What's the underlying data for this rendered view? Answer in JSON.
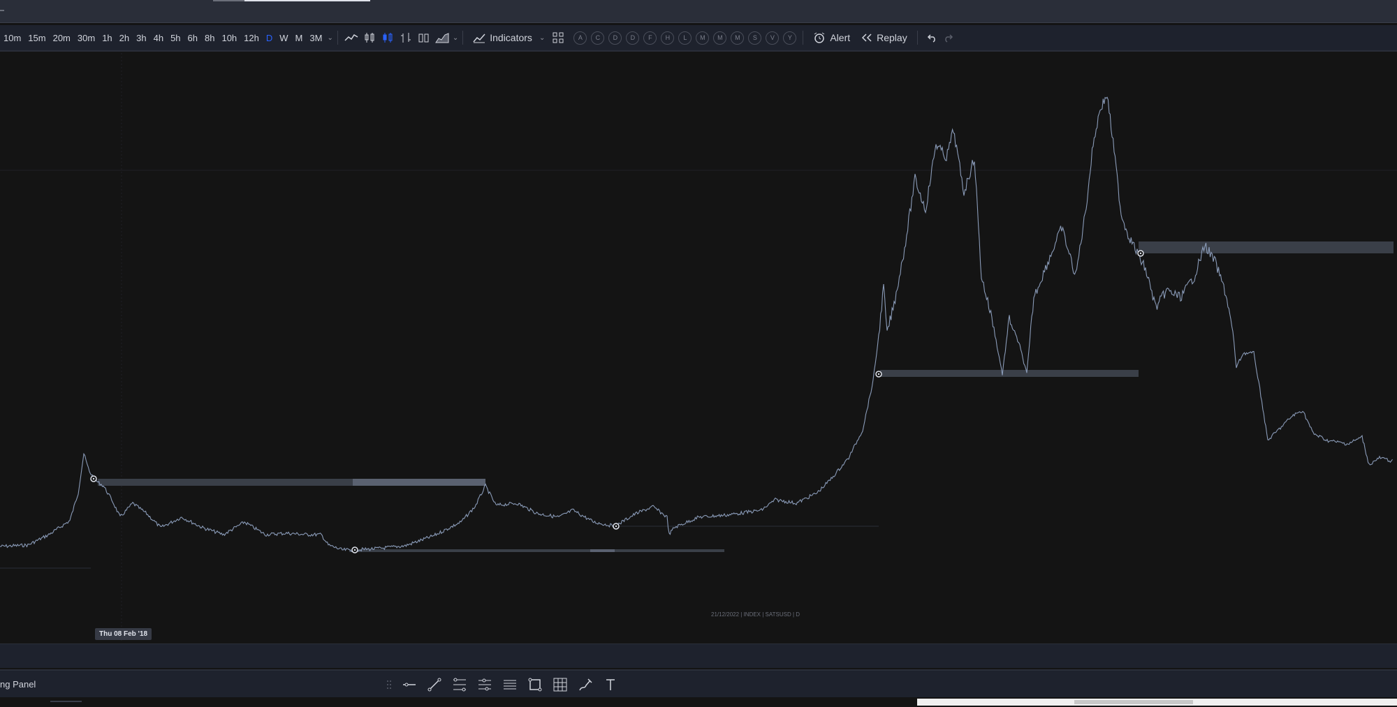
{
  "toolbar": {
    "timeframes": [
      "10m",
      "15m",
      "20m",
      "30m",
      "1h",
      "2h",
      "3h",
      "4h",
      "5h",
      "6h",
      "8h",
      "10h",
      "12h",
      "D",
      "W",
      "M",
      "3M"
    ],
    "active_timeframe": "D",
    "indicators_label": "Indicators",
    "letter_buttons": [
      "A",
      "C",
      "D",
      "D",
      "F",
      "H",
      "L",
      "M",
      "M",
      "M",
      "S",
      "V",
      "Y"
    ],
    "alert_label": "Alert",
    "replay_label": "Replay"
  },
  "chart": {
    "watermark": "21/12/2022 | INDEX | SATSUSD | D",
    "crosshair_date": "Thu 08 Feb '18",
    "line_color": "#8a9bb8",
    "zone_color": "#3a3f48",
    "zone_highlight_color": "#5a6170"
  },
  "drawing_panel": {
    "label": "ng Panel",
    "tools": [
      "drag-handle-icon",
      "horizontal-line-icon",
      "trend-line-icon",
      "fib-retracement-icon",
      "fib-extension-icon",
      "parallel-channel-icon",
      "rectangle-icon",
      "grid-icon",
      "brush-icon",
      "text-icon"
    ]
  }
}
